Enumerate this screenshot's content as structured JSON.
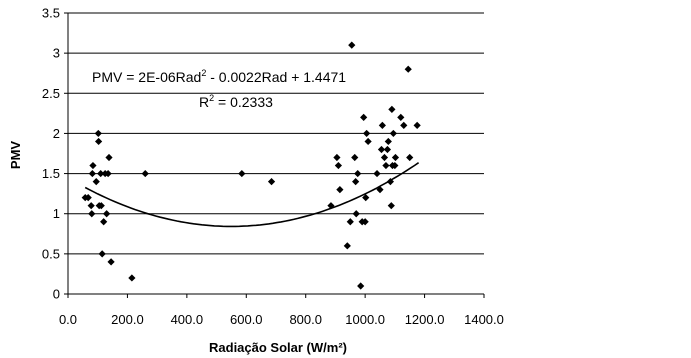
{
  "chart_data": {
    "type": "scatter",
    "title": "",
    "xlabel": "Radiação Solar (W/m²)",
    "ylabel": "PMV",
    "xlim": [
      0,
      1400
    ],
    "ylim": [
      0,
      3.5
    ],
    "x_ticks": [
      "0.0",
      "200.0",
      "400.0",
      "600.0",
      "800.0",
      "1000.0",
      "1200.0",
      "1400.0"
    ],
    "y_ticks": [
      "0",
      "0.5",
      "1",
      "1.5",
      "2",
      "2.5",
      "3",
      "3.5"
    ],
    "grid": "horizontal",
    "legend": "none",
    "marker_color": "#000000",
    "points": [
      [
        58,
        1.2
      ],
      [
        68,
        1.2
      ],
      [
        78,
        1.1
      ],
      [
        80,
        1.0
      ],
      [
        82,
        1.5
      ],
      [
        84,
        1.6
      ],
      [
        95,
        1.4
      ],
      [
        102,
        2.0
      ],
      [
        103,
        1.9
      ],
      [
        105,
        1.1
      ],
      [
        110,
        1.5
      ],
      [
        112,
        1.1
      ],
      [
        115,
        0.5
      ],
      [
        120,
        0.9
      ],
      [
        125,
        1.5
      ],
      [
        130,
        1.0
      ],
      [
        135,
        1.5
      ],
      [
        138,
        1.7
      ],
      [
        145,
        0.4
      ],
      [
        215,
        0.2
      ],
      [
        260,
        1.5
      ],
      [
        585,
        1.5
      ],
      [
        685,
        1.4
      ],
      [
        885,
        1.1
      ],
      [
        905,
        1.7
      ],
      [
        910,
        1.6
      ],
      [
        915,
        1.3
      ],
      [
        940,
        0.6
      ],
      [
        950,
        0.9
      ],
      [
        955,
        3.1
      ],
      [
        965,
        1.7
      ],
      [
        968,
        1.4
      ],
      [
        970,
        1.0
      ],
      [
        975,
        1.5
      ],
      [
        985,
        0.1
      ],
      [
        990,
        0.9
      ],
      [
        995,
        2.2
      ],
      [
        1000,
        0.9
      ],
      [
        1002,
        1.2
      ],
      [
        1005,
        2.0
      ],
      [
        1010,
        1.9
      ],
      [
        1040,
        1.5
      ],
      [
        1050,
        1.3
      ],
      [
        1055,
        1.8
      ],
      [
        1058,
        2.1
      ],
      [
        1065,
        1.7
      ],
      [
        1070,
        1.6
      ],
      [
        1075,
        1.8
      ],
      [
        1078,
        1.9
      ],
      [
        1085,
        1.4
      ],
      [
        1088,
        1.1
      ],
      [
        1090,
        2.3
      ],
      [
        1092,
        1.6
      ],
      [
        1095,
        2.0
      ],
      [
        1100,
        1.6
      ],
      [
        1102,
        1.7
      ],
      [
        1120,
        2.2
      ],
      [
        1130,
        2.1
      ],
      [
        1145,
        2.8
      ],
      [
        1150,
        1.7
      ],
      [
        1175,
        2.1
      ]
    ],
    "trendline": {
      "type": "polynomial",
      "coefficients": [
        1.4471,
        -0.0022,
        2e-06
      ],
      "x_range": [
        58,
        1180
      ]
    }
  },
  "annotations": {
    "equation_main": "PMV = 2E-06Rad",
    "equation_exp": "2",
    "equation_rest": " - 0.0022Rad + 1.4471",
    "r2_main": "R",
    "r2_exp": "2",
    "r2_rest": " = 0.2333"
  }
}
